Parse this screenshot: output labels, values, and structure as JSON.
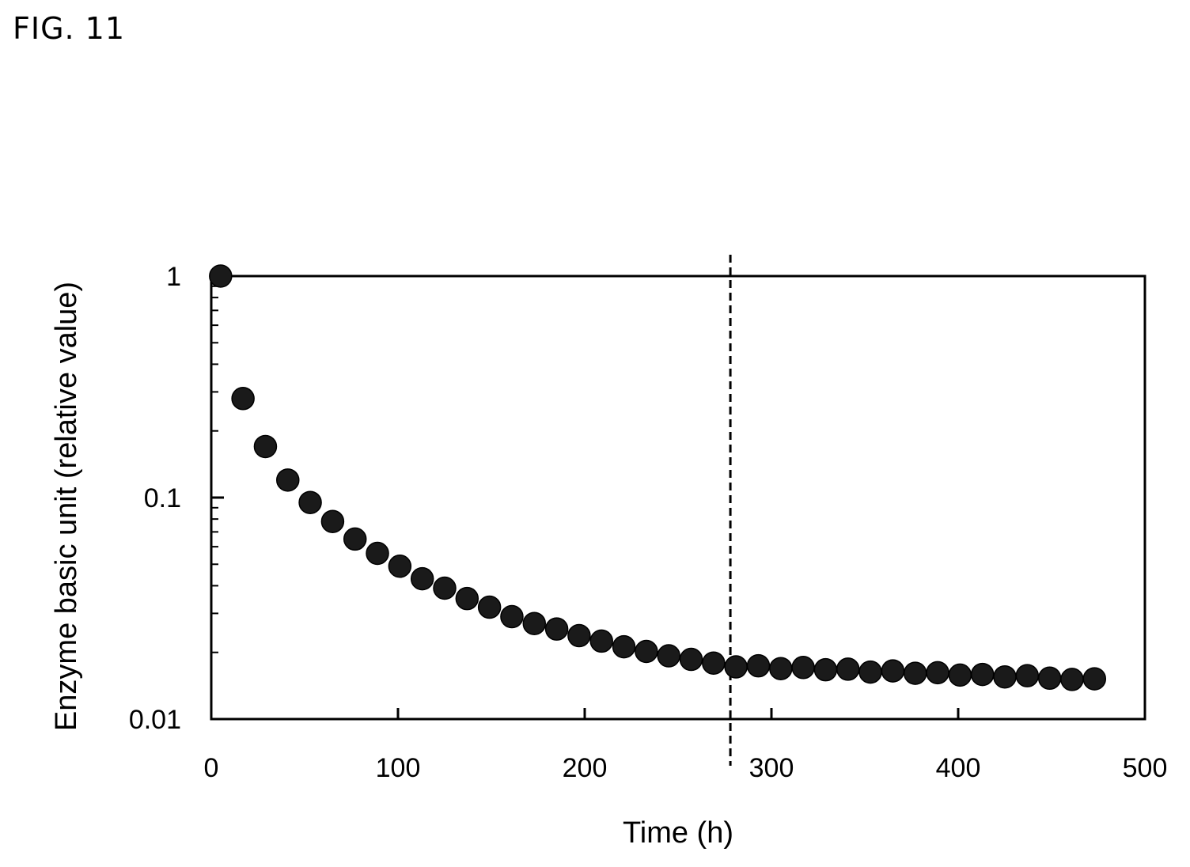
{
  "figure": {
    "label": "FIG. 11"
  },
  "chart_data": {
    "type": "scatter",
    "title": "",
    "xlabel": "Time (h)",
    "ylabel": "Enzyme basic unit (relative value)",
    "xlim": [
      0,
      500
    ],
    "ylim": [
      0.01,
      1
    ],
    "yscale": "log",
    "grid": false,
    "legend": "none",
    "x_ticks": [
      0,
      100,
      200,
      300,
      400,
      500
    ],
    "y_ticks": [
      0.01,
      0.1,
      1
    ],
    "x_tick_labels": [
      "0",
      "100",
      "200",
      "300",
      "400",
      "500"
    ],
    "y_tick_labels": [
      "0.01",
      "0.1",
      "1"
    ],
    "marker_color": "#1a1a1a",
    "reference_line": {
      "x": 278,
      "style": "dashed"
    },
    "series": [
      {
        "x": [
          5,
          17,
          29,
          41,
          53,
          65,
          77,
          89,
          101,
          113,
          125,
          137,
          149,
          161,
          173,
          185,
          197,
          209,
          221,
          233,
          245,
          257,
          269,
          281,
          293,
          305,
          317,
          329,
          341,
          353,
          365,
          377,
          389,
          401,
          413,
          425,
          437,
          449,
          461,
          473
        ],
        "y": [
          1.0,
          0.28,
          0.17,
          0.12,
          0.095,
          0.078,
          0.065,
          0.056,
          0.049,
          0.043,
          0.039,
          0.035,
          0.032,
          0.029,
          0.027,
          0.0255,
          0.0238,
          0.0225,
          0.0212,
          0.0202,
          0.0193,
          0.0186,
          0.0179,
          0.0172,
          0.0174,
          0.0169,
          0.0171,
          0.0167,
          0.0168,
          0.0163,
          0.0165,
          0.0161,
          0.0162,
          0.0158,
          0.0159,
          0.0155,
          0.0157,
          0.0153,
          0.0151,
          0.0152
        ]
      }
    ]
  }
}
